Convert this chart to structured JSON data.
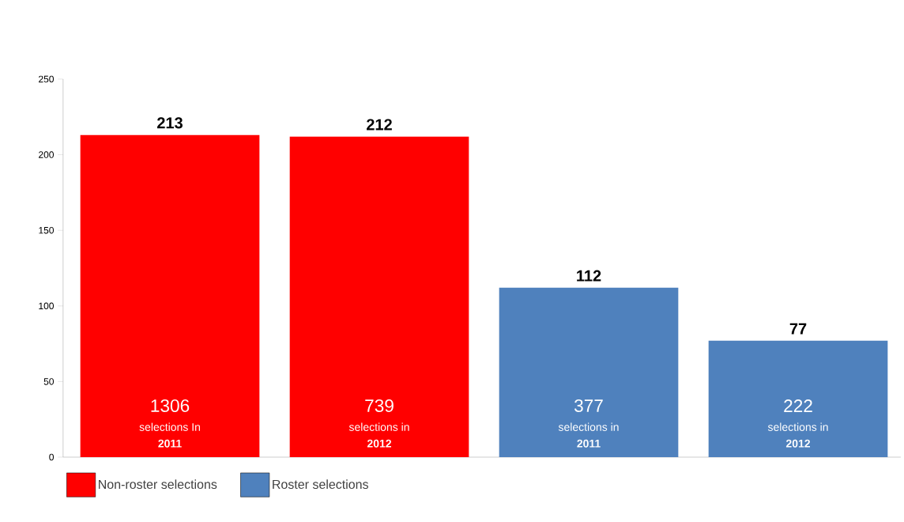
{
  "chart_data": {
    "type": "bar",
    "categories": [
      null,
      null,
      null,
      null
    ],
    "series": [
      {
        "name": "Non-roster selections",
        "color": "#ff0000",
        "values": [
          213,
          212,
          null,
          null
        ]
      },
      {
        "name": "Roster selections",
        "color": "#4f81bd",
        "values": [
          null,
          null,
          112,
          77
        ]
      }
    ],
    "ylim": [
      0,
      250
    ],
    "yticks": [
      0,
      50,
      100,
      150,
      200,
      250
    ],
    "data_labels": true,
    "grid": false,
    "legend": "bottom left",
    "annotations": [
      "1306",
      "selections In",
      "2011",
      "739",
      "selections in",
      "2012",
      "377",
      "selections in",
      "2011",
      "222",
      "selections in",
      "2012"
    ]
  }
}
